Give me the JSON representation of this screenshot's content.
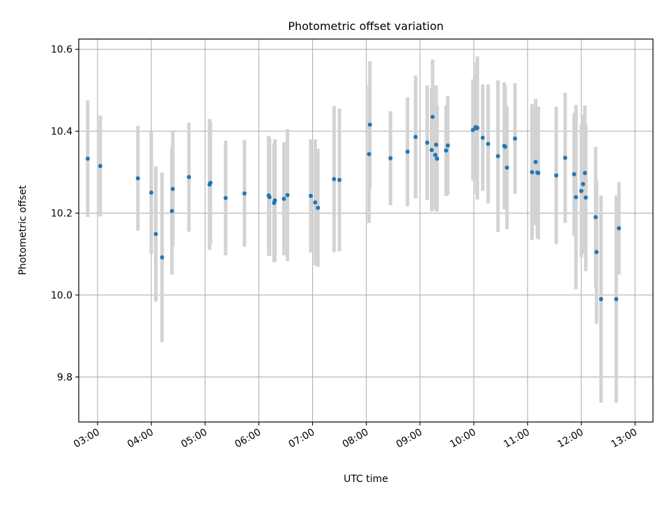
{
  "chart_data": {
    "type": "scatter",
    "title": "Photometric offset variation",
    "xlabel": "UTC time",
    "ylabel": "Photometric offset",
    "grid": true,
    "legend": "none",
    "x_unit": "UTC time (HH:MM)",
    "xlim": [
      "02:39",
      "13:20"
    ],
    "ylim": [
      9.69,
      10.625
    ],
    "x_ticks": [
      "03:00",
      "04:00",
      "05:00",
      "06:00",
      "07:00",
      "08:00",
      "09:00",
      "10:00",
      "11:00",
      "12:00",
      "13:00"
    ],
    "y_ticks": [
      "9.8",
      "10.0",
      "10.2",
      "10.4",
      "10.6"
    ],
    "colors": {
      "points": "#1f77b4",
      "errorbars": "#d3d3d3",
      "grid": "#b0b0b0",
      "axes": "#000000"
    },
    "series": [
      {
        "x": [
          "02:49",
          "03:03",
          "03:45",
          "04:00",
          "04:05",
          "04:12",
          "04:23",
          "04:24",
          "04:42",
          "05:05",
          "05:06",
          "05:23",
          "05:44",
          "06:11",
          "06:12",
          "06:17",
          "06:18",
          "06:28",
          "06:32",
          "06:58",
          "07:03",
          "07:06",
          "07:24",
          "07:30",
          "08:03",
          "08:04",
          "08:27",
          "08:46",
          "08:55",
          "09:08",
          "09:13",
          "09:14",
          "09:17",
          "09:18",
          "09:19",
          "09:29",
          "09:31",
          "09:59",
          "10:02",
          "10:03",
          "10:04",
          "10:10",
          "10:16",
          "10:27",
          "10:34",
          "10:35",
          "10:37",
          "10:46",
          "11:05",
          "11:09",
          "11:11",
          "11:12",
          "11:32",
          "11:42",
          "11:52",
          "11:54",
          "12:00",
          "12:02",
          "12:04",
          "12:05",
          "12:16",
          "12:17",
          "12:22",
          "12:39",
          "12:42"
        ],
        "y": [
          10.333,
          10.315,
          10.285,
          10.25,
          10.149,
          10.092,
          10.205,
          10.259,
          10.288,
          10.27,
          10.274,
          10.237,
          10.248,
          10.243,
          10.239,
          10.225,
          10.231,
          10.235,
          10.244,
          10.242,
          10.226,
          10.213,
          10.283,
          10.281,
          10.344,
          10.416,
          10.334,
          10.35,
          10.386,
          10.372,
          10.354,
          10.435,
          10.342,
          10.367,
          10.333,
          10.353,
          10.365,
          10.403,
          10.41,
          10.407,
          10.408,
          10.384,
          10.369,
          10.339,
          10.364,
          10.362,
          10.311,
          10.382,
          10.3,
          10.325,
          10.299,
          10.298,
          10.292,
          10.335,
          10.295,
          10.239,
          10.254,
          10.271,
          10.298,
          10.238,
          10.19,
          10.105,
          9.99,
          9.99,
          10.163
        ],
        "err": [
          0.142,
          0.123,
          0.128,
          0.15,
          0.165,
          0.207,
          0.155,
          0.14,
          0.133,
          0.16,
          0.15,
          0.14,
          0.13,
          0.146,
          0.144,
          0.145,
          0.149,
          0.138,
          0.161,
          0.138,
          0.154,
          0.144,
          0.178,
          0.174,
          0.168,
          0.155,
          0.115,
          0.133,
          0.15,
          0.14,
          0.15,
          0.14,
          0.135,
          0.145,
          0.13,
          0.111,
          0.121,
          0.124,
          0.13,
          0.162,
          0.175,
          0.13,
          0.145,
          0.185,
          0.155,
          0.15,
          0.15,
          0.135,
          0.166,
          0.154,
          0.159,
          0.162,
          0.168,
          0.159,
          0.15,
          0.225,
          0.162,
          0.17,
          0.165,
          0.18,
          0.172,
          0.175,
          0.253,
          0.253,
          0.113
        ]
      }
    ]
  }
}
